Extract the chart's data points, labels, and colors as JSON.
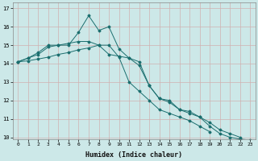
{
  "xlabel": "Humidex (Indice chaleur)",
  "background_color": "#cce8e8",
  "grid_color": "#b0d4d4",
  "line_color": "#1a6e6e",
  "x_values": [
    0,
    1,
    2,
    3,
    4,
    5,
    6,
    7,
    8,
    9,
    10,
    11,
    12,
    13,
    14,
    15,
    16,
    17,
    18,
    19,
    20,
    21,
    22,
    23
  ],
  "series1": [
    14.1,
    14.3,
    14.6,
    15.0,
    15.0,
    15.0,
    15.7,
    16.6,
    15.8,
    16.0,
    14.8,
    14.3,
    13.9,
    12.8,
    12.1,
    12.0,
    11.5,
    11.4,
    11.1,
    10.6,
    10.2,
    10.0,
    9.9,
    9.85
  ],
  "series2": [
    14.1,
    14.3,
    14.5,
    14.9,
    15.0,
    15.1,
    15.2,
    15.2,
    15.0,
    14.5,
    14.4,
    14.3,
    14.1,
    12.8,
    12.1,
    11.9,
    11.5,
    11.3,
    11.1,
    10.8,
    10.4,
    10.2,
    10.0,
    null
  ],
  "series3": [
    14.1,
    14.15,
    14.25,
    14.35,
    14.5,
    14.6,
    14.75,
    14.85,
    15.0,
    15.0,
    14.35,
    13.0,
    12.5,
    12.0,
    11.5,
    11.3,
    11.1,
    10.9,
    10.6,
    10.3,
    null,
    null,
    null,
    null
  ],
  "ylim": [
    10,
    17
  ],
  "xlim": [
    -0.5,
    23.5
  ],
  "yticks": [
    10,
    11,
    12,
    13,
    14,
    15,
    16,
    17
  ],
  "xticks": [
    0,
    1,
    2,
    3,
    4,
    5,
    6,
    7,
    8,
    9,
    10,
    11,
    12,
    13,
    14,
    15,
    16,
    17,
    18,
    19,
    20,
    21,
    22,
    23
  ]
}
